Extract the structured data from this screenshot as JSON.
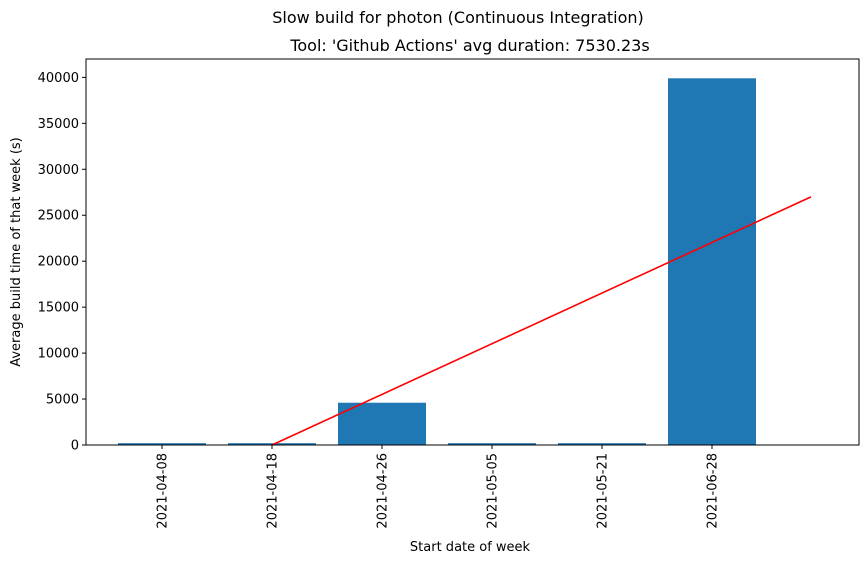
{
  "chart_data": {
    "type": "bar",
    "suptitle": "Slow build for photon (Continuous Integration)",
    "title": "Tool: 'Github Actions' avg duration: 7530.23s",
    "xlabel": "Start date of week",
    "ylabel": "Average build time of that week (s)",
    "categories": [
      "2021-04-08",
      "2021-04-18",
      "2021-04-26",
      "2021-05-05",
      "2021-05-21",
      "2021-06-28"
    ],
    "values": [
      200,
      200,
      4600,
      200,
      200,
      39900
    ],
    "ylim": [
      0,
      42000
    ],
    "yticks": [
      0,
      5000,
      10000,
      15000,
      20000,
      25000,
      30000,
      35000,
      40000
    ],
    "bar_color": "#1f77b4",
    "trend_line": {
      "color": "#ff0000",
      "x_start": "2021-04-18",
      "y_start": 0,
      "x_end": "2021-07-07",
      "y_end": 27000
    },
    "grid": false,
    "legend": "none"
  }
}
